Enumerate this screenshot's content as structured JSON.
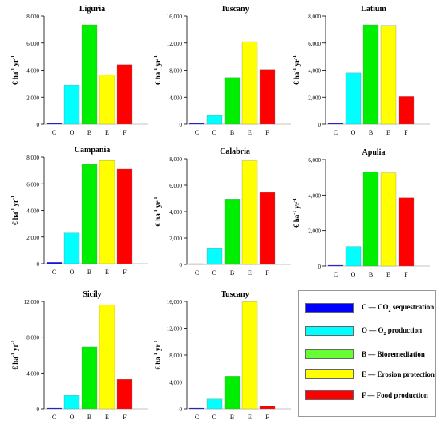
{
  "legend": {
    "items": [
      {
        "code": "C",
        "label": "CO",
        "sub": "2",
        "tail": " sequestration",
        "color": "#0000ff"
      },
      {
        "code": "O",
        "label": "O",
        "sub": "2",
        "tail": " production",
        "color": "#00ffff"
      },
      {
        "code": "B",
        "label": "Bioremediation",
        "sub": "",
        "tail": "",
        "color": "#66ff33"
      },
      {
        "code": "E",
        "label": "Erosion protection",
        "sub": "",
        "tail": "",
        "color": "#ffff00"
      },
      {
        "code": "F",
        "label": "Food production",
        "sub": "",
        "tail": "",
        "color": "#ff0000"
      }
    ],
    "dash": "—"
  },
  "chart_data": [
    {
      "type": "bar",
      "title": "Liguria",
      "ylabel": "€ ha-1 yr-1",
      "categories": [
        "C",
        "O",
        "B",
        "E",
        "F"
      ],
      "values": [
        50,
        2900,
        7350,
        3650,
        4400
      ],
      "ylim": [
        0,
        8000
      ],
      "yticks": [
        "0",
        "2,000",
        "4,000",
        "6,000",
        "8,000"
      ],
      "colors": [
        "#0000ff",
        "#00ffff",
        "#00ee00",
        "#ffff00",
        "#ff0000"
      ]
    },
    {
      "type": "bar",
      "title": "Tuscany",
      "ylabel": "€ ha-1 yr-1",
      "categories": [
        "C",
        "O",
        "B",
        "E",
        "F"
      ],
      "values": [
        60,
        1300,
        6900,
        12200,
        8100
      ],
      "ylim": [
        0,
        16000
      ],
      "yticks": [
        "0",
        "4,000",
        "8,000",
        "12,000",
        "16,000"
      ],
      "colors": [
        "#0000ff",
        "#00ffff",
        "#00ee00",
        "#ffff00",
        "#ff0000"
      ]
    },
    {
      "type": "bar",
      "title": "Latium",
      "ylabel": "€ ha-1 yr-1",
      "categories": [
        "C",
        "O",
        "B",
        "E",
        "F"
      ],
      "values": [
        40,
        3800,
        7350,
        7300,
        2050
      ],
      "ylim": [
        0,
        8000
      ],
      "yticks": [
        "0",
        "2,000",
        "4,000",
        "6,000",
        "8,000"
      ],
      "colors": [
        "#0000ff",
        "#00ffff",
        "#00ee00",
        "#ffff00",
        "#ff0000"
      ]
    },
    {
      "type": "bar",
      "title": "Campania",
      "ylabel": "€ ha-1 yr-1",
      "categories": [
        "C",
        "O",
        "B",
        "E",
        "F"
      ],
      "values": [
        100,
        2300,
        7450,
        7750,
        7100
      ],
      "ylim": [
        0,
        8000
      ],
      "yticks": [
        "0",
        "2,000",
        "4,000",
        "6,000",
        "8,000"
      ],
      "colors": [
        "#0000ff",
        "#00ffff",
        "#00ee00",
        "#ffff00",
        "#ff0000"
      ]
    },
    {
      "type": "bar",
      "title": "Calabria",
      "ylabel": "€ ha-1 yr-1",
      "categories": [
        "C",
        "O",
        "B",
        "E",
        "F"
      ],
      "values": [
        50,
        1200,
        4950,
        7850,
        5450
      ],
      "ylim": [
        0,
        8000
      ],
      "yticks": [
        "0",
        "2,000",
        "4,000",
        "6,000",
        "8,000"
      ],
      "colors": [
        "#0000ff",
        "#00ffff",
        "#00ee00",
        "#ffff00",
        "#ff0000"
      ]
    },
    {
      "type": "bar",
      "title": "Apulia",
      "ylabel": "€ ha-1 yr-1",
      "categories": [
        "C",
        "O",
        "B",
        "E",
        "F"
      ],
      "values": [
        40,
        1100,
        5300,
        5250,
        3850
      ],
      "ylim": [
        0,
        6000
      ],
      "yticks": [
        "0",
        "2,000",
        "4,000",
        "6,000"
      ],
      "colors": [
        "#0000ff",
        "#00ffff",
        "#00ee00",
        "#ffff00",
        "#ff0000"
      ]
    },
    {
      "type": "bar",
      "title": "Sicily",
      "ylabel": "€ ha-1 yr-1",
      "categories": [
        "C",
        "O",
        "B",
        "E",
        "F"
      ],
      "values": [
        80,
        1500,
        6900,
        11600,
        3300
      ],
      "ylim": [
        0,
        12000
      ],
      "yticks": [
        "0",
        "4,000",
        "8,000",
        "12,000"
      ],
      "colors": [
        "#0000ff",
        "#00ffff",
        "#00ee00",
        "#ffff00",
        "#ff0000"
      ]
    },
    {
      "type": "bar",
      "title": "Tuscany",
      "ylabel": "€ ha-1 yr-1",
      "categories": [
        "C",
        "O",
        "B",
        "E",
        "F"
      ],
      "values": [
        100,
        1450,
        4850,
        15950,
        400
      ],
      "ylim": [
        0,
        16000
      ],
      "yticks": [
        "0",
        "4,000",
        "8,000",
        "12,000",
        "16,000"
      ],
      "colors": [
        "#0000ff",
        "#00ffff",
        "#00ee00",
        "#ffff00",
        "#ff0000"
      ]
    }
  ]
}
